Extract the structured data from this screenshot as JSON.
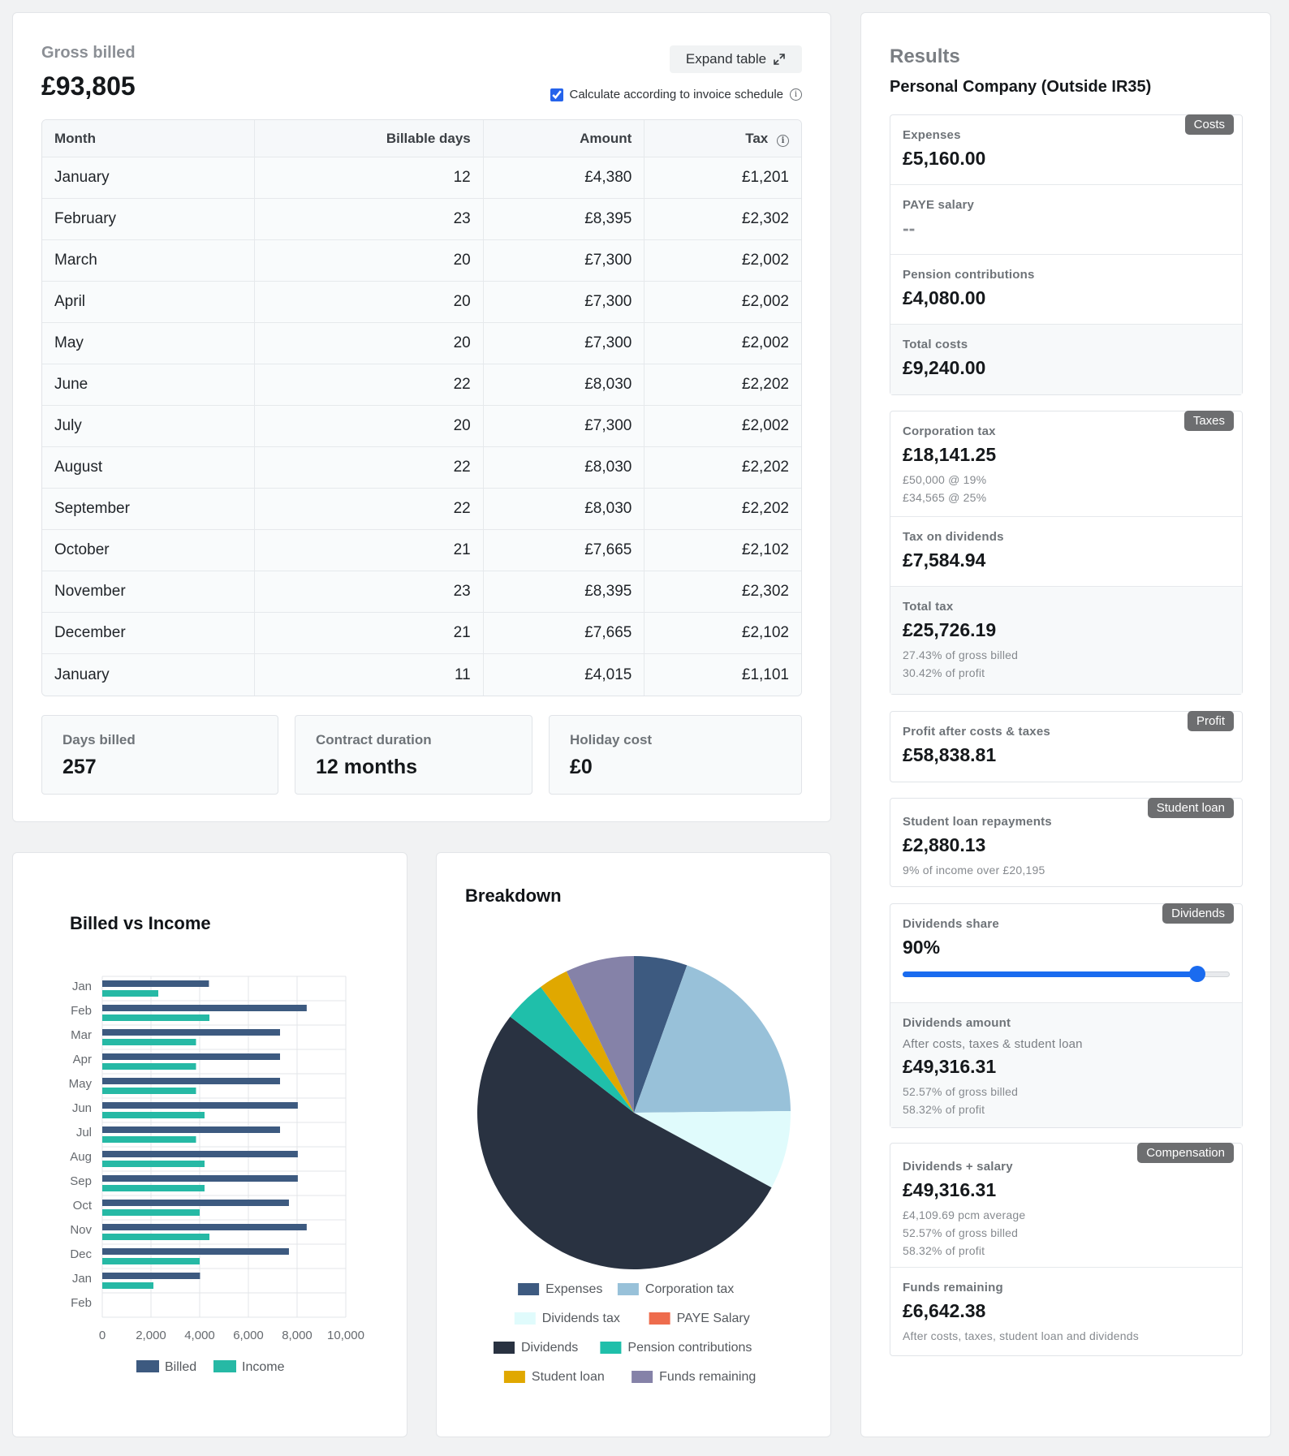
{
  "gross": {
    "label": "Gross billed",
    "value": "£93,805",
    "expand_label": "Expand table",
    "schedule_label": "Calculate according to invoice schedule",
    "schedule_checked": true,
    "info_glyph": "i"
  },
  "table": {
    "headers": {
      "month": "Month",
      "days": "Billable days",
      "amount": "Amount",
      "tax": "Tax"
    },
    "rows": [
      {
        "month": "January",
        "days": "12",
        "amount": "£4,380",
        "tax": "£1,201"
      },
      {
        "month": "February",
        "days": "23",
        "amount": "£8,395",
        "tax": "£2,302"
      },
      {
        "month": "March",
        "days": "20",
        "amount": "£7,300",
        "tax": "£2,002"
      },
      {
        "month": "April",
        "days": "20",
        "amount": "£7,300",
        "tax": "£2,002"
      },
      {
        "month": "May",
        "days": "20",
        "amount": "£7,300",
        "tax": "£2,002"
      },
      {
        "month": "June",
        "days": "22",
        "amount": "£8,030",
        "tax": "£2,202"
      },
      {
        "month": "July",
        "days": "20",
        "amount": "£7,300",
        "tax": "£2,002"
      },
      {
        "month": "August",
        "days": "22",
        "amount": "£8,030",
        "tax": "£2,202"
      },
      {
        "month": "September",
        "days": "22",
        "amount": "£8,030",
        "tax": "£2,202"
      },
      {
        "month": "October",
        "days": "21",
        "amount": "£7,665",
        "tax": "£2,102"
      },
      {
        "month": "November",
        "days": "23",
        "amount": "£8,395",
        "tax": "£2,302"
      },
      {
        "month": "December",
        "days": "21",
        "amount": "£7,665",
        "tax": "£2,102"
      },
      {
        "month": "January",
        "days": "11",
        "amount": "£4,015",
        "tax": "£1,101"
      }
    ]
  },
  "stats": {
    "days_billed": {
      "label": "Days billed",
      "value": "257"
    },
    "contract_duration": {
      "label": "Contract duration",
      "value": "12 months"
    },
    "holiday_cost": {
      "label": "Holiday cost",
      "value": "£0"
    }
  },
  "results": {
    "title": "Results",
    "subtitle": "Personal Company (Outside IR35)",
    "costs": {
      "badge": "Costs",
      "expenses_label": "Expenses",
      "expenses_value": "£5,160.00",
      "paye_label": "PAYE salary",
      "paye_value": "--",
      "pension_label": "Pension contributions",
      "pension_value": "£4,080.00",
      "total_label": "Total costs",
      "total_value": "£9,240.00"
    },
    "taxes": {
      "badge": "Taxes",
      "corp_label": "Corporation tax",
      "corp_value": "£18,141.25",
      "corp_note1": "£50,000 @ 19%",
      "corp_note2": "£34,565 @ 25%",
      "div_tax_label": "Tax on dividends",
      "div_tax_value": "£7,584.94",
      "total_label": "Total tax",
      "total_value": "£25,726.19",
      "total_note1": "27.43% of gross billed",
      "total_note2": "30.42% of profit"
    },
    "profit": {
      "badge": "Profit",
      "label": "Profit after costs & taxes",
      "value": "£58,838.81"
    },
    "student_loan": {
      "badge": "Student loan",
      "label": "Student loan repayments",
      "value": "£2,880.13",
      "note": "9% of income over £20,195"
    },
    "dividends": {
      "badge": "Dividends",
      "share_label": "Dividends share",
      "share_value": "90%",
      "share_fraction": 0.9,
      "amount_label": "Dividends amount",
      "amount_sub": "After costs, taxes & student loan",
      "amount_value": "£49,316.31",
      "amount_note1": "52.57% of gross billed",
      "amount_note2": "58.32% of profit"
    },
    "compensation": {
      "badge": "Compensation",
      "comp_label": "Dividends + salary",
      "comp_value": "£49,316.31",
      "comp_note1": "£4,109.69 pcm average",
      "comp_note2": "52.57% of gross billed",
      "comp_note3": "58.32% of profit",
      "funds_label": "Funds remaining",
      "funds_value": "£6,642.38",
      "funds_note": "After costs, taxes, student loan and dividends"
    }
  },
  "chart_data": [
    {
      "type": "bar",
      "orientation": "horizontal",
      "title": "Billed vs Income",
      "categories": [
        "Jan",
        "Feb",
        "Mar",
        "Apr",
        "May",
        "Jun",
        "Jul",
        "Aug",
        "Sep",
        "Oct",
        "Nov",
        "Dec",
        "Jan",
        "Feb"
      ],
      "series": [
        {
          "name": "Billed",
          "color": "#3d5a80",
          "values": [
            4380,
            8395,
            7300,
            7300,
            7300,
            8030,
            7300,
            8030,
            8030,
            7665,
            8395,
            7665,
            4015,
            null
          ]
        },
        {
          "name": "Income",
          "color": "#26b9a5",
          "values": [
            2300,
            4400,
            3850,
            3850,
            3850,
            4200,
            3850,
            4200,
            4200,
            4000,
            4400,
            4000,
            2100,
            null
          ]
        }
      ],
      "xticks": [
        "0",
        "2,000",
        "4,000",
        "6,000",
        "8,000",
        "10,000"
      ],
      "xlim": [
        0,
        10000
      ],
      "grid": true,
      "legend": "bottom"
    },
    {
      "type": "pie",
      "title": "Breakdown",
      "slices": [
        {
          "name": "Expenses",
          "value": 5160,
          "color": "#3d5a80"
        },
        {
          "name": "Corporation tax",
          "value": 18141.25,
          "color": "#98c1d9"
        },
        {
          "name": "Dividends tax",
          "value": 7584.94,
          "color": "#e0fbfc"
        },
        {
          "name": "PAYE Salary",
          "value": 0,
          "color": "#ee6c4d"
        },
        {
          "name": "Dividends",
          "value": 49316.31,
          "color": "#293241"
        },
        {
          "name": "Pension contributions",
          "value": 4080,
          "color": "#1fbfaa"
        },
        {
          "name": "Student loan",
          "value": 2880.13,
          "color": "#e0a800"
        },
        {
          "name": "Funds remaining",
          "value": 6642.38,
          "color": "#8582a8"
        }
      ],
      "legend": "bottom"
    }
  ]
}
